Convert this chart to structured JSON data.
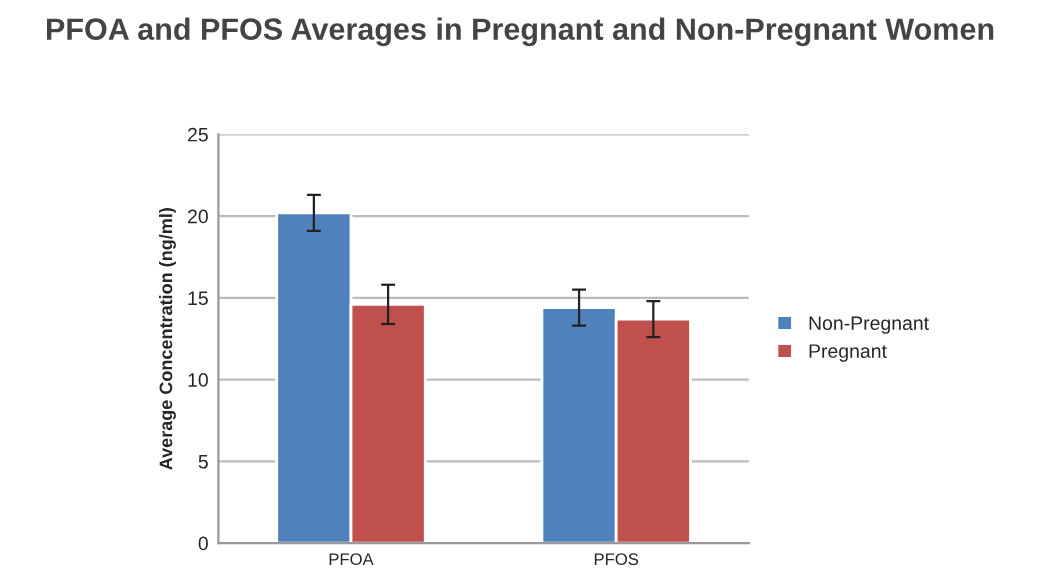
{
  "chart_data": {
    "type": "bar",
    "title": "PFOA and PFOS Averages in Pregnant and Non-Pregnant Women",
    "ylabel": "Average Concentration (ng/ml)",
    "categories": [
      "PFOA",
      "PFOS"
    ],
    "series": [
      {
        "name": "Non-Pregnant",
        "color": "#4f81bd",
        "values": [
          20.2,
          14.4
        ],
        "errors": [
          1.1,
          1.1
        ]
      },
      {
        "name": "Pregnant",
        "color": "#c0504d",
        "values": [
          14.6,
          13.7
        ],
        "errors": [
          1.2,
          1.1
        ]
      }
    ],
    "ylim": [
      0,
      25
    ],
    "yticks": [
      0,
      5,
      10,
      15,
      20,
      25
    ],
    "grid": "y",
    "legend": "right"
  }
}
